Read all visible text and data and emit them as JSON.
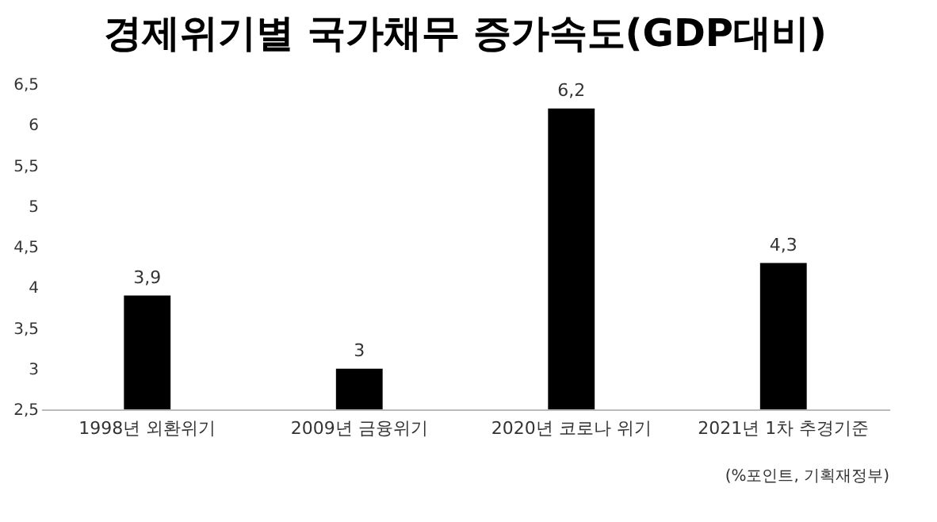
{
  "chart_data": {
    "type": "bar",
    "title": "경제위기별 국가채무 증가속도(GDP대비)",
    "categories": [
      "1998년 외환위기",
      "2009년 금융위기",
      "2020년 코로나 위기",
      "2021년 1차 추경기준"
    ],
    "values": [
      3.9,
      3,
      6.2,
      4.3
    ],
    "value_labels": [
      "3,9",
      "3",
      "6,2",
      "4,3"
    ],
    "color": "#000000",
    "ylim": [
      2.5,
      6.5
    ],
    "yticks": [
      {
        "value": 2.5,
        "label": "2,5"
      },
      3,
      {
        "value": 3.5,
        "label": "3,5"
      },
      4,
      {
        "value": 4.5,
        "label": "4,5"
      },
      5,
      {
        "value": 5.5,
        "label": "5,5"
      },
      6,
      {
        "value": 6.5,
        "label": "6,5"
      }
    ],
    "grid": false,
    "annotations": [
      "(%포인트, 기획재정부)"
    ]
  }
}
